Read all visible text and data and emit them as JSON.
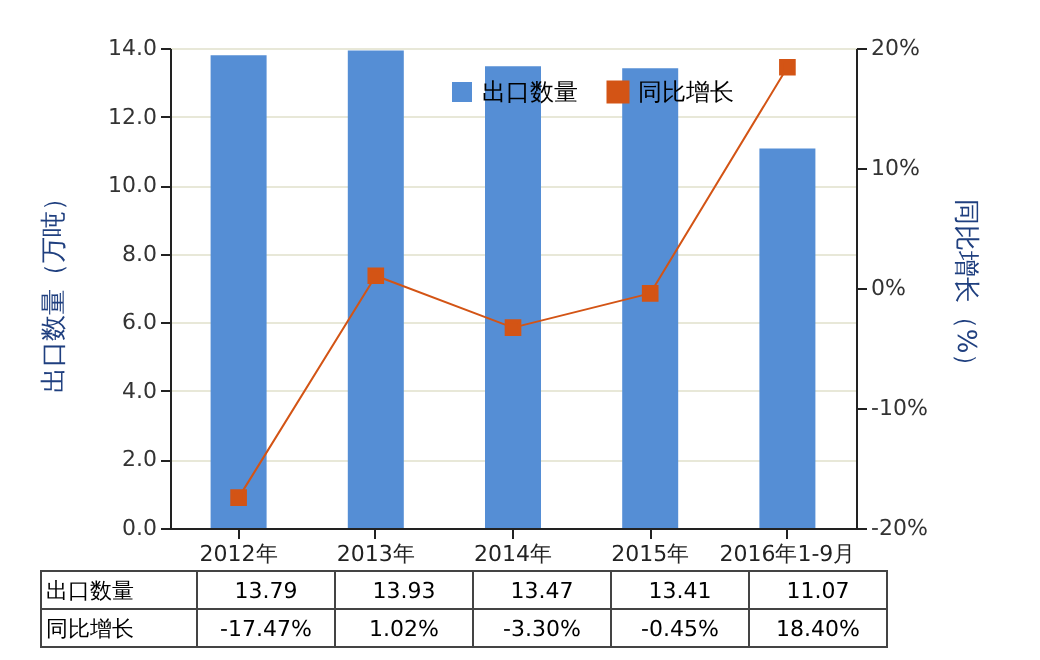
{
  "chart_data": {
    "type": "bar",
    "categories": [
      "2012年",
      "2013年",
      "2014年",
      "2015年",
      "2016年1-9月"
    ],
    "ylabel": "出口数量（万吨）",
    "y2label": "同比增长（%）",
    "series": [
      {
        "name": "出口数量",
        "color": "#558ed5",
        "values": [
          13.79,
          13.93,
          13.47,
          13.41,
          11.07
        ],
        "value_labels": [
          "13.79",
          "13.93",
          "13.47",
          "13.41",
          "11.07"
        ]
      },
      {
        "name": "同比增长",
        "type": "line",
        "axis": "y2",
        "color": "#d35415",
        "values": [
          -17.47,
          1.02,
          -3.3,
          -0.45,
          18.4
        ],
        "value_labels": [
          "-17.47%",
          "1.02%",
          "-3.30%",
          "-0.45%",
          "18.40%"
        ]
      }
    ],
    "ylim": [
      0,
      14
    ],
    "yticks": [
      {
        "value": 0,
        "label": "0.0"
      },
      {
        "value": 2,
        "label": "2.0"
      },
      {
        "value": 4,
        "label": "4.0"
      },
      {
        "value": 6,
        "label": "6.0"
      },
      {
        "value": 8,
        "label": "8.0"
      },
      {
        "value": 10,
        "label": "10.0"
      },
      {
        "value": 12,
        "label": "12.0"
      },
      {
        "value": 14,
        "label": "14.0"
      }
    ],
    "y2lim": [
      -20,
      20
    ],
    "y2ticks": [
      {
        "value": -20,
        "label": "-20%"
      },
      {
        "value": -10,
        "label": "-10%"
      },
      {
        "value": 0,
        "label": "0%"
      },
      {
        "value": 10,
        "label": "10%"
      },
      {
        "value": 20,
        "label": "20%"
      }
    ],
    "grid": "y",
    "legend": "top right",
    "marker": "square",
    "line_style": "solid"
  }
}
